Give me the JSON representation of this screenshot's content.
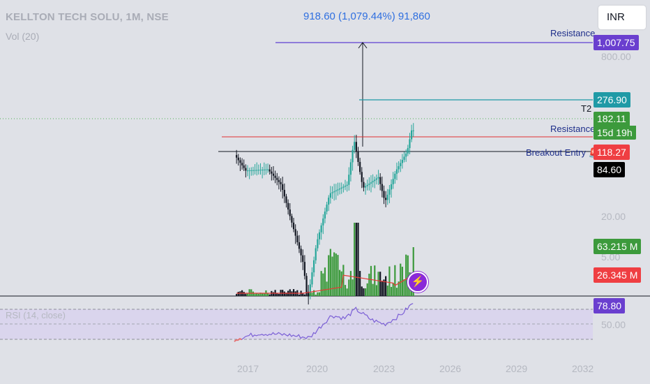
{
  "header": {
    "title": "KELLTON TECH SOLU, 1M, NSE",
    "volume_indicator": "Vol (20)",
    "measure_label": "918.60 (1,079.44%) 91,860",
    "currency_button": "INR"
  },
  "labels": {
    "resistance_top": "Resistance",
    "t2": "T2",
    "resistance_mid": "Resistance",
    "breakout_entry": "Breakout Entry 🚨"
  },
  "price_tags": {
    "resistance": "1,007.75",
    "target": "276.90",
    "last_price": "182.11",
    "countdown": "15d 19h",
    "breakout": "118.27",
    "support": "84.60",
    "volume_last": "63.215 M",
    "volume_ma": "26.345 M",
    "rsi": "78.80"
  },
  "price_axis": {
    "t800": "800.00",
    "t20": "20.00",
    "t5": "5.00",
    "rsi50": "50.00"
  },
  "rsi_indicator": {
    "label": "RSI (14, close)"
  },
  "colors": {
    "up": "#26a69a",
    "up_vol": "#3c9a3c",
    "down": "#131722",
    "resistance_line": "#e03030",
    "breakout_line": "#131722",
    "target_line": "#1f9aa6",
    "top_line": "#5d3fd3",
    "rsi_line": "#7b5fd6",
    "vol_ma": "#e53935"
  },
  "chart_data": {
    "type": "candlestick",
    "title": "KELLTON TECH SOLU, 1M, NSE",
    "x_ticks": [
      "2017",
      "2020",
      "2023",
      "2026",
      "2029",
      "2032"
    ],
    "y_scale": "log",
    "series": [
      {
        "name": "Price",
        "points": [
          [
            2016.5,
            110
          ],
          [
            2017.0,
            80
          ],
          [
            2018.0,
            82
          ],
          [
            2018.6,
            60
          ],
          [
            2019.6,
            12
          ],
          [
            2019.8,
            5.5
          ],
          [
            2020.2,
            18
          ],
          [
            2020.8,
            50
          ],
          [
            2021.6,
            60
          ],
          [
            2021.9,
            150
          ],
          [
            2022.3,
            56
          ],
          [
            2023.0,
            70
          ],
          [
            2023.3,
            42
          ],
          [
            2023.8,
            80
          ],
          [
            2024.3,
            118
          ],
          [
            2024.5,
            182.11
          ]
        ]
      },
      {
        "name": "RSI (14, close)",
        "points": [
          [
            2016.4,
            30
          ],
          [
            2017.5,
            38
          ],
          [
            2018.8,
            36
          ],
          [
            2019.8,
            32
          ],
          [
            2020.8,
            62
          ],
          [
            2021.4,
            58
          ],
          [
            2021.9,
            70
          ],
          [
            2022.6,
            56
          ],
          [
            2023.2,
            50
          ],
          [
            2023.9,
            62
          ],
          [
            2024.5,
            78.8
          ]
        ]
      }
    ],
    "levels": [
      {
        "label": "Resistance",
        "value": 1007.75
      },
      {
        "label": "T2",
        "value": 276.9
      },
      {
        "label": "Resistance",
        "value": 182.11
      },
      {
        "label": "Breakout Entry",
        "value": 118.27
      },
      {
        "label": "",
        "value": 84.6
      }
    ],
    "volume": {
      "last": "63.215 M",
      "ma20": "26.345 M"
    },
    "rsi_last": 78.8
  }
}
